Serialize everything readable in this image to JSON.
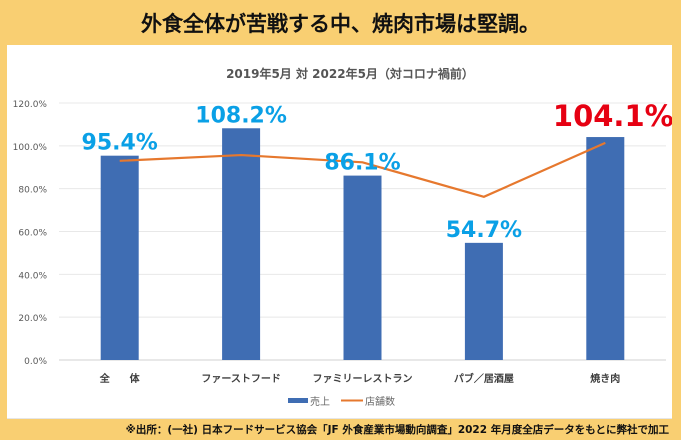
{
  "headline": "外食全体が苦戦する中、焼肉市場は堅調。",
  "source_note": "※出所：(一社) 日本フードサービス協会「JF 外食産業市場動向調査」2022 年月度全店データをもとに弊社で加工",
  "colors": {
    "bar": "#3f6db3",
    "line": "#e6782e",
    "label_blue": "#0aa0e6",
    "label_red": "#e60012",
    "background": "#f9cf72"
  },
  "chart_data": {
    "type": "bar",
    "title": "2019年5月 対 2022年5月（対コロナ禍前）",
    "categories": [
      "全　　体",
      "ファーストフード",
      "ファミリーレストラン",
      "パブ／居酒屋",
      "焼き肉"
    ],
    "series": [
      {
        "name": "売上",
        "kind": "bar",
        "values": [
          95.4,
          108.2,
          86.1,
          54.7,
          104.1
        ]
      },
      {
        "name": "店舗数",
        "kind": "line",
        "values": [
          93.0,
          95.7,
          92.3,
          76.2,
          101.4
        ]
      }
    ],
    "data_labels": [
      "95.4%",
      "108.2%",
      "86.1%",
      "54.7%",
      "104.1%"
    ],
    "highlight_index": 4,
    "ylim": [
      0,
      120
    ],
    "yticks": [
      "0.0%",
      "20.0%",
      "40.0%",
      "60.0%",
      "80.0%",
      "100.0%",
      "120.0%"
    ],
    "grid": true,
    "legend": "bottom",
    "xlabel": "",
    "ylabel": ""
  }
}
